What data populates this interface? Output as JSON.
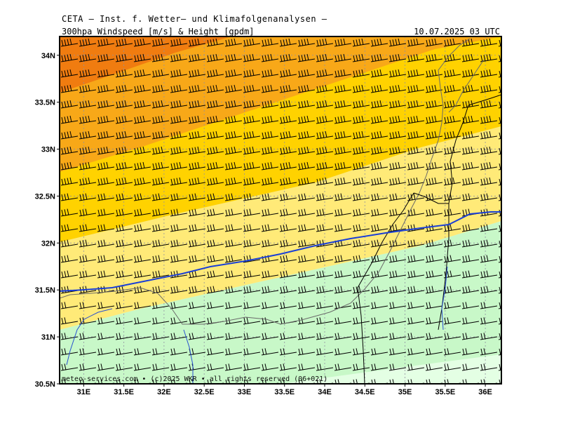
{
  "header": {
    "title": "CETA – Inst. f. Wetter– und Klimafolgenanalysen –",
    "subtitle": "300hpa Windspeed [m/s] & Height [gpdm]",
    "datetime": "10.07.2025 03 UTC"
  },
  "map": {
    "lat_labels": [
      "34N",
      "33.5N",
      "33N",
      "32.5N",
      "32N",
      "31.5N",
      "31N",
      "30.5N"
    ],
    "lat_values": [
      34,
      33.5,
      33,
      32.5,
      32,
      31.5,
      31,
      30.5
    ],
    "lon_labels": [
      "31E",
      "31.5E",
      "32E",
      "32.5E",
      "33E",
      "33.5E",
      "34E",
      "34.5E",
      "35E",
      "35.5E",
      "36E"
    ],
    "lon_values": [
      31,
      31.5,
      32,
      32.5,
      33,
      33.5,
      34,
      34.5,
      35,
      35.5,
      36
    ],
    "credit": "meteo-services.com  • (c)2025 WKR • all rights reserved (06+021)",
    "colors": {
      "dark_orange": "#f07c10",
      "orange": "#f8a818",
      "gold": "#ffd200",
      "light_yellow": "#ffea78",
      "light_green": "#c8f8c8",
      "pale_green": "#e4ffe4",
      "height_contour": "#1a3fd6",
      "border": "#000000",
      "coast": "#6a6a6a"
    }
  }
}
